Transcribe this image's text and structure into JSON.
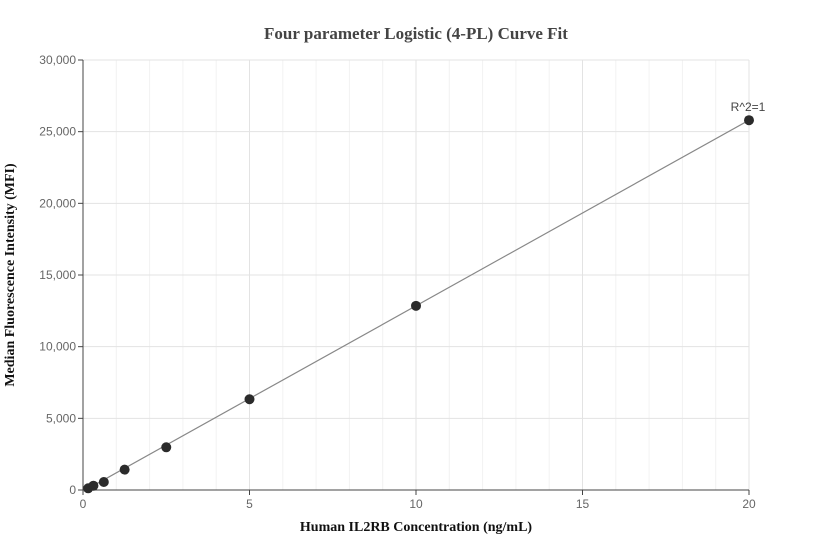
{
  "chart_data": {
    "type": "scatter",
    "title": "Four parameter Logistic (4-PL) Curve Fit",
    "xlabel": "Human IL2RB Concentration (ng/mL)",
    "ylabel": "Median Fluorescence Intensity (MFI)",
    "xlim": [
      0,
      20
    ],
    "ylim": [
      0,
      30000
    ],
    "x_ticks": [
      0,
      5,
      10,
      15,
      20
    ],
    "x_tick_labels": [
      "0",
      "5",
      "10",
      "15",
      "20"
    ],
    "y_ticks": [
      0,
      5000,
      10000,
      15000,
      20000,
      25000,
      30000
    ],
    "y_tick_labels": [
      "0",
      "5,000",
      "10,000",
      "15,000",
      "20,000",
      "25,000",
      "30,000"
    ],
    "grid": true,
    "series": [
      {
        "points": [
          {
            "x": 0.156,
            "y": 120
          },
          {
            "x": 0.313,
            "y": 300
          },
          {
            "x": 0.625,
            "y": 560
          },
          {
            "x": 1.25,
            "y": 1420
          },
          {
            "x": 2.5,
            "y": 2980
          },
          {
            "x": 5,
            "y": 6330
          },
          {
            "x": 10,
            "y": 12850
          },
          {
            "x": 20,
            "y": 25800
          }
        ],
        "color": "#2b2b2b"
      }
    ],
    "fit_line": {
      "x": [
        0,
        20
      ],
      "y": [
        -100,
        25800
      ],
      "color": "#888888"
    },
    "annotation": {
      "text": "R^2=1",
      "x": 20,
      "y": 25800
    }
  }
}
